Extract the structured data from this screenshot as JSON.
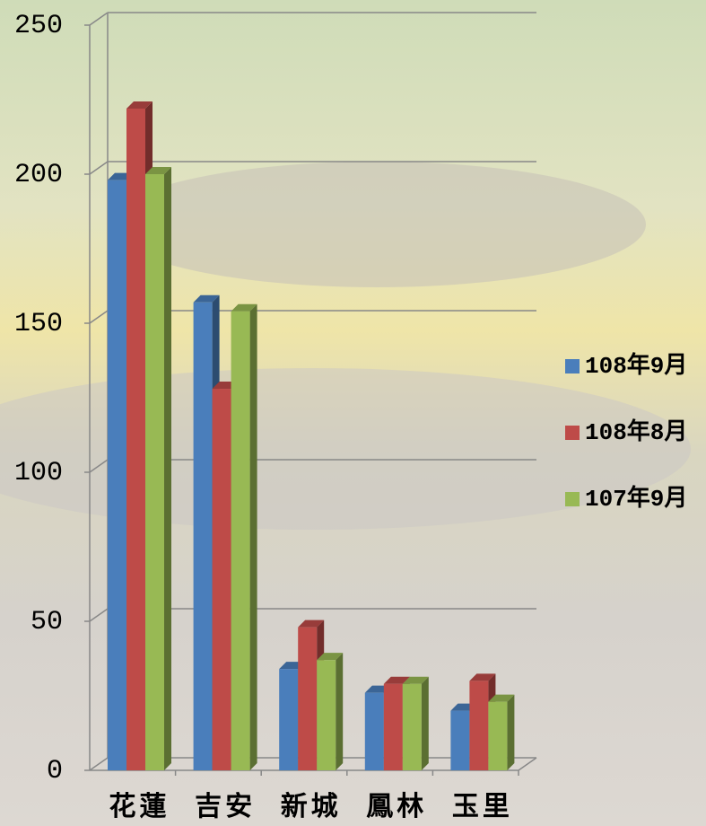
{
  "chart_data": {
    "type": "bar3d",
    "categories": [
      "花蓮",
      "吉安",
      "新城",
      "鳳林",
      "玉里"
    ],
    "series": [
      {
        "name": "108年9月",
        "color": "#4a7ebb",
        "values": [
          198,
          157,
          34,
          26,
          20
        ]
      },
      {
        "name": "108年8月",
        "color": "#be4b48",
        "values": [
          222,
          128,
          48,
          29,
          30
        ]
      },
      {
        "name": "107年9月",
        "color": "#98b954",
        "values": [
          200,
          154,
          37,
          29,
          23
        ]
      }
    ],
    "ylim": [
      0,
      250
    ],
    "yticks": [
      0,
      50,
      100,
      150,
      200,
      250
    ],
    "grid": true,
    "legend": "right"
  }
}
